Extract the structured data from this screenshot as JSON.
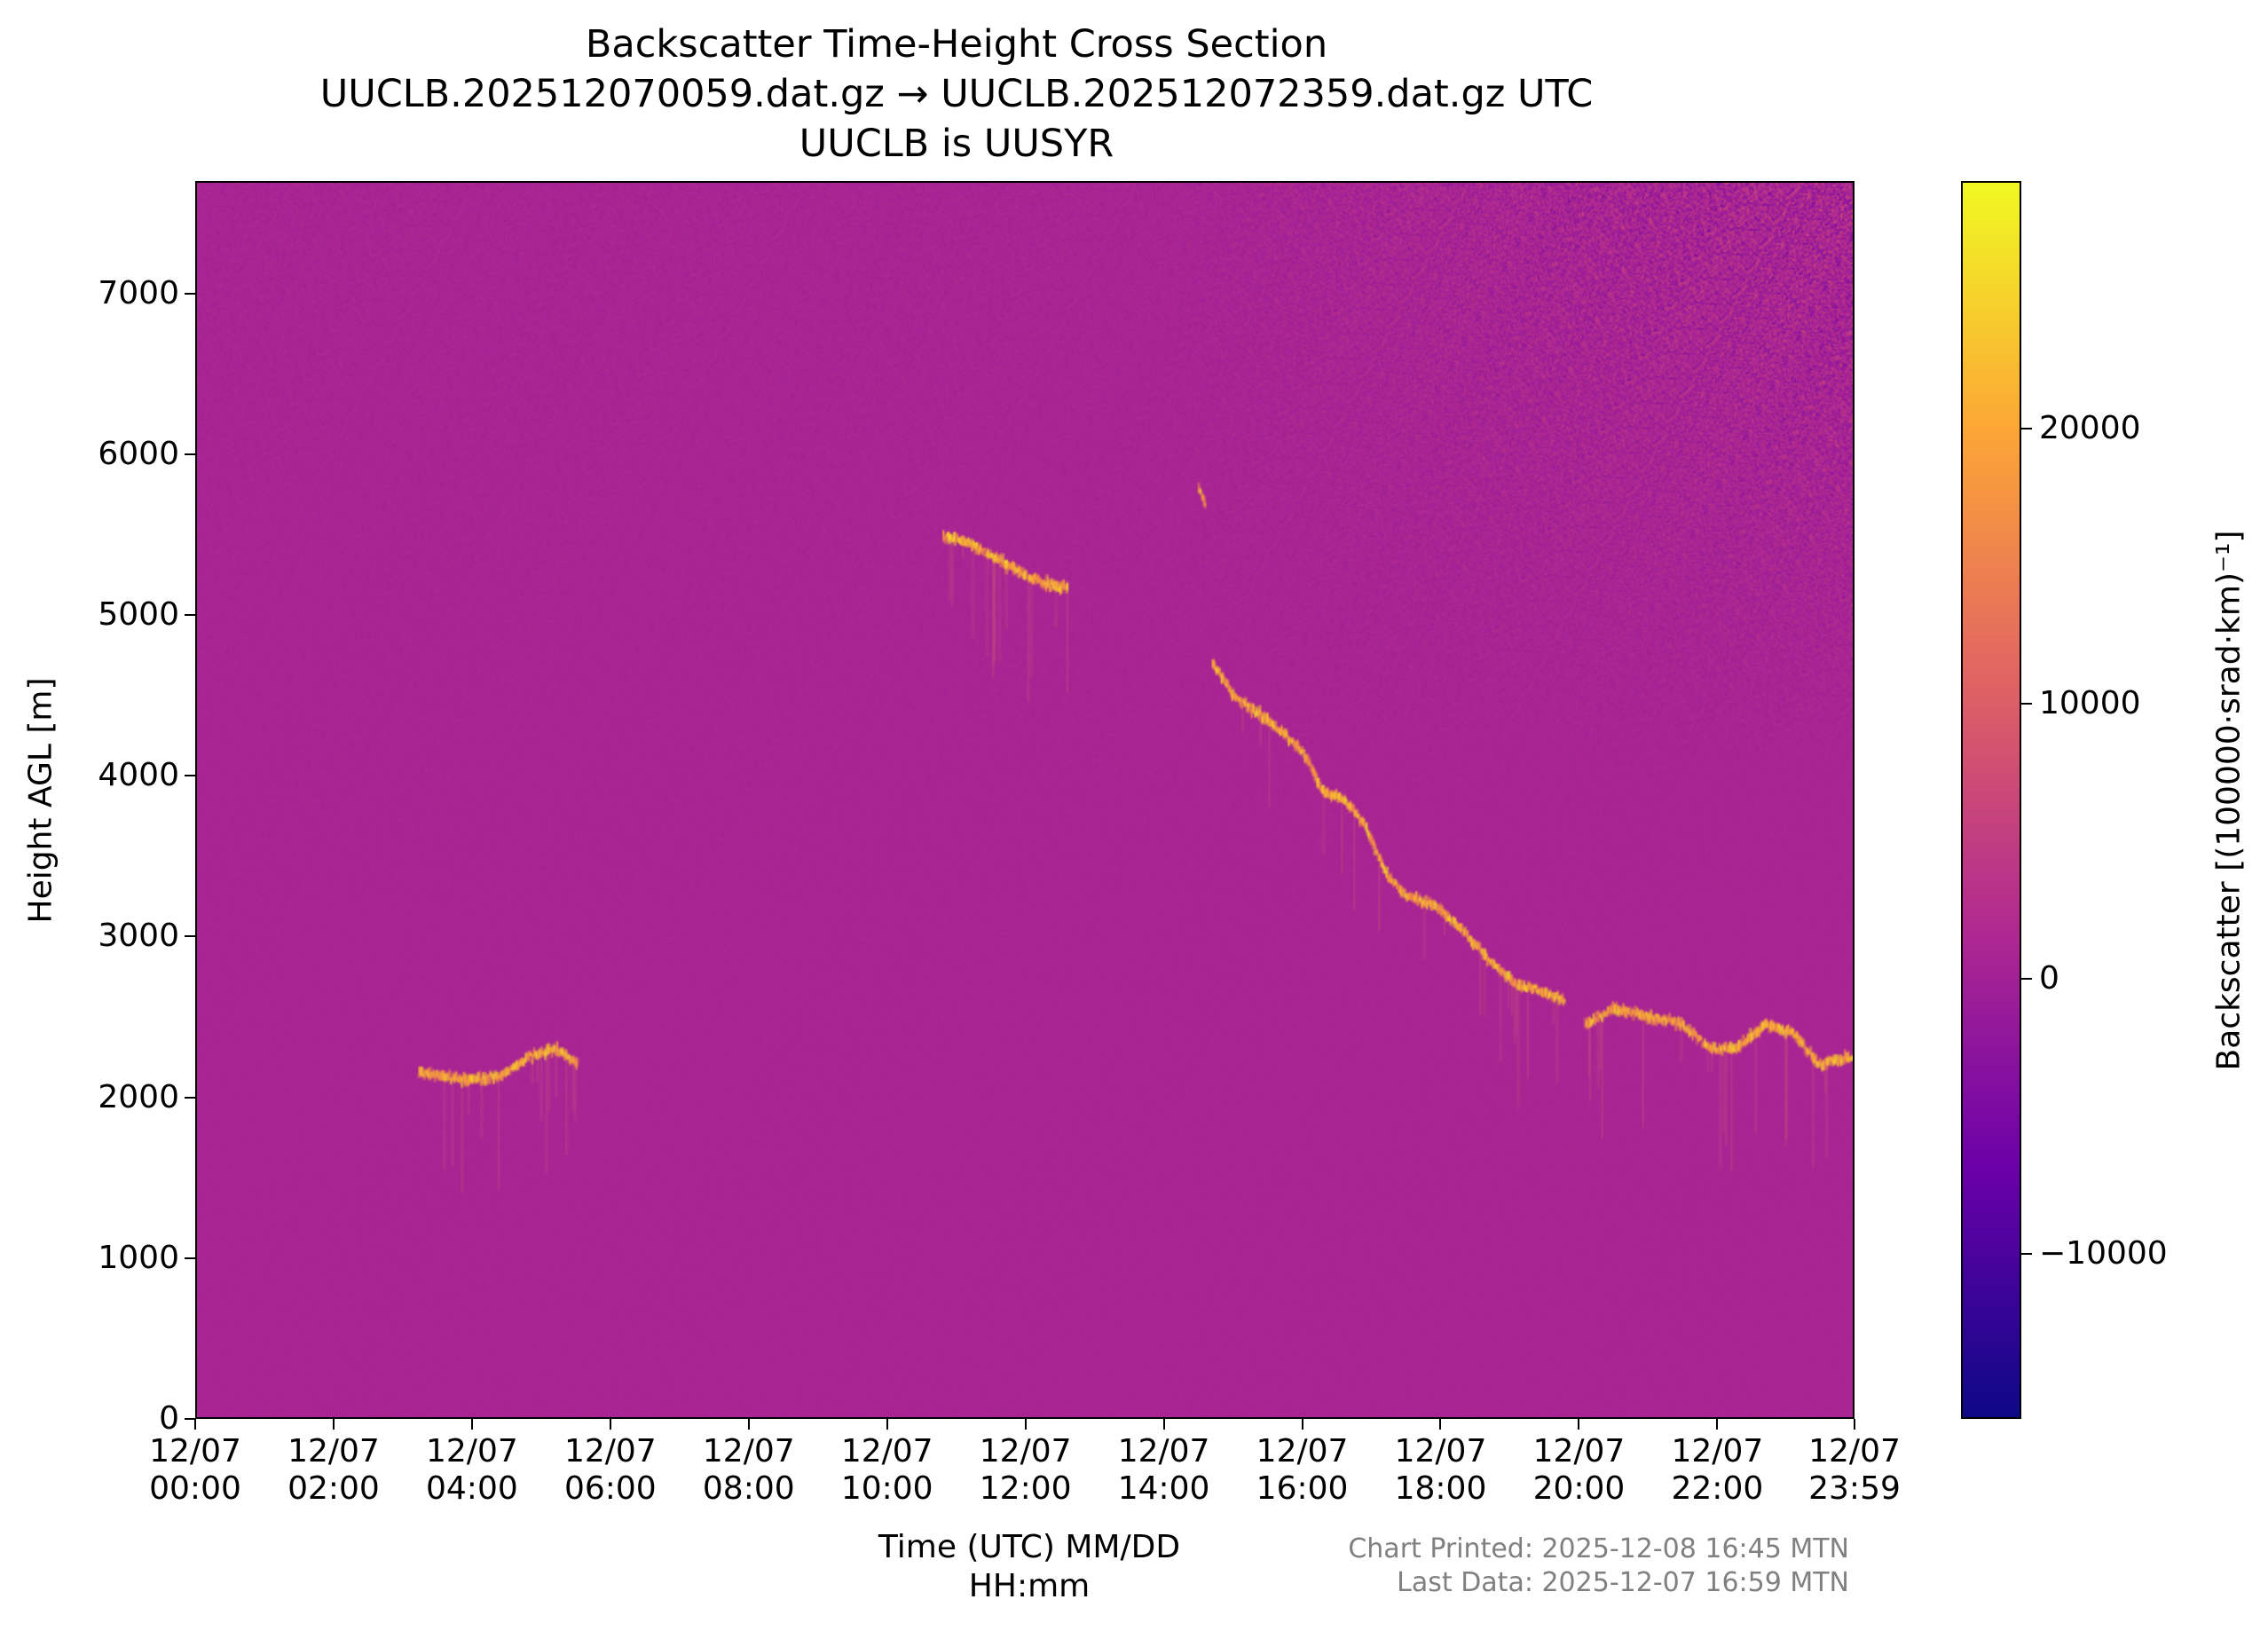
{
  "chart_data": {
    "type": "heatmap",
    "title": "Backscatter Time-Height Cross Section",
    "subtitle": "UUCLB.202512070059.dat.gz → UUCLB.202512072359.dat.gz UTC",
    "subtitle2": "UUCLB is UUSYR",
    "xlabel": "Time (UTC) MM/DD\nHH:mm",
    "ylabel": "Height AGL [m]",
    "xlim_hours": [
      0,
      23.983
    ],
    "ylim": [
      0,
      7700
    ],
    "x_ticks": [
      {
        "value": 0,
        "label": "12/07\n00:00"
      },
      {
        "value": 2,
        "label": "12/07\n02:00"
      },
      {
        "value": 4,
        "label": "12/07\n04:00"
      },
      {
        "value": 6,
        "label": "12/07\n06:00"
      },
      {
        "value": 8,
        "label": "12/07\n08:00"
      },
      {
        "value": 10,
        "label": "12/07\n10:00"
      },
      {
        "value": 12,
        "label": "12/07\n12:00"
      },
      {
        "value": 14,
        "label": "12/07\n14:00"
      },
      {
        "value": 16,
        "label": "12/07\n16:00"
      },
      {
        "value": 18,
        "label": "12/07\n18:00"
      },
      {
        "value": 20,
        "label": "12/07\n20:00"
      },
      {
        "value": 22,
        "label": "12/07\n22:00"
      },
      {
        "value": 23.983,
        "label": "12/07\n23:59"
      }
    ],
    "y_ticks": [
      0,
      1000,
      2000,
      3000,
      4000,
      5000,
      6000,
      7000
    ],
    "colorbar": {
      "label": "Backscatter [(100000·srad·km)⁻¹]",
      "range": [
        -16000,
        29000
      ],
      "ticks": [
        {
          "value": -10000,
          "label": "−10000"
        },
        {
          "value": 0,
          "label": "0"
        },
        {
          "value": 10000,
          "label": "10000"
        },
        {
          "value": 20000,
          "label": "20000"
        }
      ],
      "colormap": "plasma",
      "colors": [
        "#0d0887",
        "#6a00a8",
        "#b12a90",
        "#e16462",
        "#fca636",
        "#f0f921"
      ]
    },
    "background_value": 0,
    "cloud_layers": [
      {
        "name": "",
        "points": [
          [
            3.2,
            2150
          ],
          [
            3.6,
            2120
          ],
          [
            4.0,
            2100
          ],
          [
            4.4,
            2130
          ],
          [
            4.8,
            2250
          ],
          [
            5.2,
            2300
          ],
          [
            5.5,
            2200
          ]
        ]
      },
      {
        "name": "",
        "points": [
          [
            10.8,
            5500
          ],
          [
            11.2,
            5450
          ],
          [
            11.6,
            5350
          ],
          [
            12.0,
            5250
          ],
          [
            12.4,
            5180
          ],
          [
            12.6,
            5180
          ]
        ]
      },
      {
        "name": "",
        "points": [
          [
            14.5,
            5800
          ],
          [
            14.6,
            5700
          ]
        ]
      },
      {
        "name": "",
        "points": [
          [
            14.7,
            4700
          ],
          [
            15.0,
            4500
          ],
          [
            15.5,
            4350
          ],
          [
            16.0,
            4150
          ],
          [
            16.3,
            3900
          ],
          [
            16.6,
            3850
          ],
          [
            16.9,
            3700
          ],
          [
            17.2,
            3400
          ],
          [
            17.5,
            3250
          ],
          [
            17.9,
            3200
          ],
          [
            18.3,
            3050
          ],
          [
            18.7,
            2850
          ],
          [
            19.1,
            2700
          ],
          [
            19.5,
            2650
          ],
          [
            19.8,
            2600
          ]
        ]
      },
      {
        "name": "",
        "points": [
          [
            20.1,
            2450
          ],
          [
            20.5,
            2550
          ],
          [
            21.0,
            2500
          ],
          [
            21.5,
            2450
          ],
          [
            21.9,
            2300
          ],
          [
            22.3,
            2300
          ],
          [
            22.7,
            2450
          ],
          [
            23.1,
            2400
          ],
          [
            23.5,
            2200
          ],
          [
            23.98,
            2250
          ]
        ]
      }
    ],
    "grid": false
  },
  "footer": {
    "printed": "Chart Printed: 2025-12-08 16:45 MTN",
    "last_data": "Last Data: 2025-12-07 16:59 MTN"
  }
}
